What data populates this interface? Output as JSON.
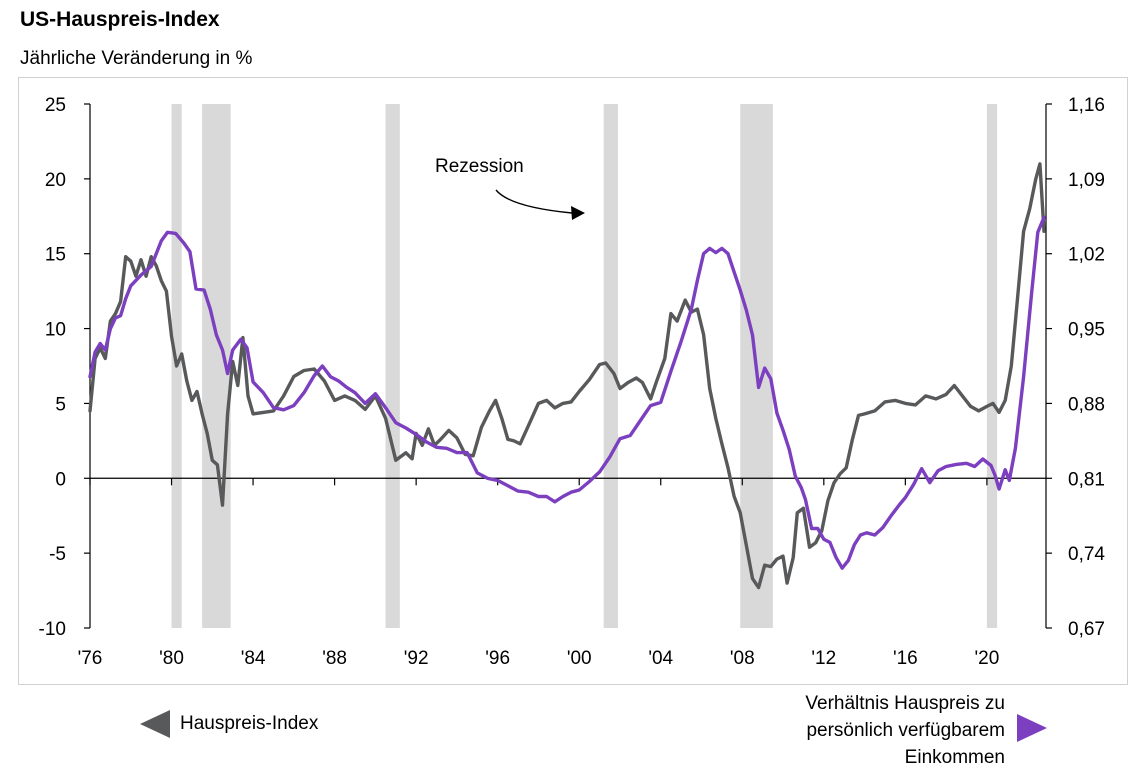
{
  "title": "US-Hauspreis-Index",
  "subtitle": "Jährliche Veränderung in %",
  "legend": {
    "left_label": "Hauspreis-Index",
    "right_line1": "Verhältnis Hauspreis zu",
    "right_line2": "persönlich verfügbarem",
    "right_line3": "Einkommen"
  },
  "colors": {
    "hpi": "#58595b",
    "ratio": "#7b3fbf",
    "recession": "#d9d9d9"
  },
  "chart_data": {
    "type": "line",
    "title": "US-Hauspreis-Index",
    "subtitle": "Jährliche Veränderung in %",
    "annotation": "Rezession",
    "x_range": [
      1976,
      2022.9
    ],
    "x_ticks": [
      1976,
      1980,
      1984,
      1988,
      1992,
      1996,
      2000,
      2004,
      2008,
      2012,
      2016,
      2020
    ],
    "x_tick_labels": [
      "'76",
      "'80",
      "'84",
      "'88",
      "'92",
      "'96",
      "'00",
      "'04",
      "'08",
      "'12",
      "'16",
      "'20"
    ],
    "y_left": {
      "min": -10,
      "max": 25,
      "ticks": [
        -10,
        -5,
        0,
        5,
        10,
        15,
        20,
        25
      ],
      "tick_labels": [
        "-10",
        "-5",
        "0",
        "5",
        "10",
        "15",
        "20",
        "25"
      ]
    },
    "y_right": {
      "min": 0.67,
      "max": 1.16,
      "ticks": [
        0.67,
        0.74,
        0.81,
        0.88,
        0.95,
        1.02,
        1.09,
        1.16
      ],
      "tick_labels": [
        "0,67",
        "0,74",
        "0,81",
        "0,88",
        "0,95",
        "1,02",
        "1,09",
        "1,16"
      ]
    },
    "recessions": [
      [
        1980.0,
        1980.5
      ],
      [
        1981.5,
        1982.9
      ],
      [
        1990.5,
        1991.2
      ],
      [
        2001.2,
        2001.9
      ],
      [
        2007.9,
        2009.5
      ],
      [
        2020.0,
        2020.5
      ]
    ],
    "series": [
      {
        "name": "Hauspreis-Index",
        "axis": "left",
        "points": [
          [
            1976.0,
            4.5
          ],
          [
            1976.25,
            8
          ],
          [
            1976.5,
            8.7
          ],
          [
            1976.75,
            8
          ],
          [
            1977.0,
            10.5
          ],
          [
            1977.25,
            11
          ],
          [
            1977.5,
            11.8
          ],
          [
            1977.75,
            14.8
          ],
          [
            1978.0,
            14.5
          ],
          [
            1978.25,
            13.5
          ],
          [
            1978.5,
            14.6
          ],
          [
            1978.75,
            13.5
          ],
          [
            1979.0,
            14.8
          ],
          [
            1979.25,
            14.2
          ],
          [
            1979.5,
            13.2
          ],
          [
            1979.75,
            12.5
          ],
          [
            1980.0,
            9.5
          ],
          [
            1980.25,
            7.5
          ],
          [
            1980.5,
            8.3
          ],
          [
            1980.75,
            6.5
          ],
          [
            1981.0,
            5.2
          ],
          [
            1981.25,
            5.8
          ],
          [
            1981.5,
            4.3
          ],
          [
            1981.75,
            3
          ],
          [
            1982.0,
            1.2
          ],
          [
            1982.25,
            0.9
          ],
          [
            1982.5,
            -1.8
          ],
          [
            1982.75,
            4.3
          ],
          [
            1983.0,
            7.8
          ],
          [
            1983.25,
            6.2
          ],
          [
            1983.5,
            9.4
          ],
          [
            1983.75,
            5.5
          ],
          [
            1984.0,
            4.3
          ],
          [
            1984.5,
            4.4
          ],
          [
            1985.0,
            4.5
          ],
          [
            1985.5,
            5.5
          ],
          [
            1986.0,
            6.8
          ],
          [
            1986.5,
            7.2
          ],
          [
            1987.0,
            7.3
          ],
          [
            1987.5,
            6.5
          ],
          [
            1988.0,
            5.2
          ],
          [
            1988.5,
            5.5
          ],
          [
            1989.0,
            5.2
          ],
          [
            1989.5,
            4.6
          ],
          [
            1990.0,
            5.5
          ],
          [
            1990.5,
            4
          ],
          [
            1991.0,
            1.2
          ],
          [
            1991.5,
            1.7
          ],
          [
            1991.8,
            1.3
          ],
          [
            1992.0,
            3
          ],
          [
            1992.3,
            2.2
          ],
          [
            1992.6,
            3.3
          ],
          [
            1992.9,
            2.2
          ],
          [
            1993.2,
            2.6
          ],
          [
            1993.6,
            3.2
          ],
          [
            1994.0,
            2.7
          ],
          [
            1994.4,
            1.6
          ],
          [
            1994.8,
            1.5
          ],
          [
            1995.2,
            3.4
          ],
          [
            1995.6,
            4.5
          ],
          [
            1995.9,
            5.2
          ],
          [
            1996.2,
            4
          ],
          [
            1996.5,
            2.6
          ],
          [
            1996.8,
            2.5
          ],
          [
            1997.1,
            2.3
          ],
          [
            1997.5,
            3.5
          ],
          [
            1998.0,
            5
          ],
          [
            1998.4,
            5.2
          ],
          [
            1998.8,
            4.7
          ],
          [
            1999.2,
            5
          ],
          [
            1999.6,
            5.1
          ],
          [
            2000.0,
            5.8
          ],
          [
            2000.5,
            6.6
          ],
          [
            2001.0,
            7.6
          ],
          [
            2001.3,
            7.7
          ],
          [
            2001.7,
            7
          ],
          [
            2002.0,
            6
          ],
          [
            2002.4,
            6.4
          ],
          [
            2002.8,
            6.7
          ],
          [
            2003.1,
            6.4
          ],
          [
            2003.5,
            5.3
          ],
          [
            2003.8,
            6.5
          ],
          [
            2004.2,
            8
          ],
          [
            2004.5,
            11
          ],
          [
            2004.8,
            10.5
          ],
          [
            2005.2,
            11.9
          ],
          [
            2005.5,
            11.1
          ],
          [
            2005.8,
            11.3
          ],
          [
            2006.1,
            9.6
          ],
          [
            2006.4,
            6
          ],
          [
            2006.7,
            4
          ],
          [
            2007.0,
            2.3
          ],
          [
            2007.3,
            0.7
          ],
          [
            2007.6,
            -1.2
          ],
          [
            2007.9,
            -2.3
          ],
          [
            2008.2,
            -4.5
          ],
          [
            2008.5,
            -6.7
          ],
          [
            2008.8,
            -7.3
          ],
          [
            2009.1,
            -5.8
          ],
          [
            2009.4,
            -5.9
          ],
          [
            2009.7,
            -5.4
          ],
          [
            2010.0,
            -5.2
          ],
          [
            2010.2,
            -7
          ],
          [
            2010.5,
            -5.3
          ],
          [
            2010.7,
            -2.3
          ],
          [
            2011.0,
            -2
          ],
          [
            2011.3,
            -4.6
          ],
          [
            2011.6,
            -4.3
          ],
          [
            2011.9,
            -3.5
          ],
          [
            2012.2,
            -1.5
          ],
          [
            2012.5,
            -0.3
          ],
          [
            2012.8,
            0.3
          ],
          [
            2013.1,
            0.7
          ],
          [
            2013.4,
            2.6
          ],
          [
            2013.7,
            4.2
          ],
          [
            2014.0,
            4.3
          ],
          [
            2014.5,
            4.5
          ],
          [
            2015.0,
            5.1
          ],
          [
            2015.5,
            5.2
          ],
          [
            2016.0,
            5
          ],
          [
            2016.5,
            4.9
          ],
          [
            2017.0,
            5.5
          ],
          [
            2017.5,
            5.3
          ],
          [
            2018.0,
            5.6
          ],
          [
            2018.4,
            6.2
          ],
          [
            2018.8,
            5.5
          ],
          [
            2019.2,
            4.8
          ],
          [
            2019.6,
            4.5
          ],
          [
            2020.0,
            4.8
          ],
          [
            2020.3,
            5
          ],
          [
            2020.6,
            4.4
          ],
          [
            2020.9,
            5.2
          ],
          [
            2021.2,
            7.5
          ],
          [
            2021.5,
            12
          ],
          [
            2021.8,
            16.5
          ],
          [
            2022.1,
            18
          ],
          [
            2022.4,
            20
          ],
          [
            2022.6,
            21
          ],
          [
            2022.8,
            16.5
          ]
        ]
      },
      {
        "name": "Verhältnis Hauspreis zu persönlich verfügbarem Einkommen",
        "axis": "right",
        "points": [
          [
            1976.0,
            0.905
          ],
          [
            1976.25,
            0.928
          ],
          [
            1976.5,
            0.936
          ],
          [
            1976.75,
            0.93
          ],
          [
            1977.0,
            0.95
          ],
          [
            1977.25,
            0.96
          ],
          [
            1977.5,
            0.962
          ],
          [
            1977.75,
            0.978
          ],
          [
            1978.0,
            0.99
          ],
          [
            1978.5,
            1.0
          ],
          [
            1979.0,
            1.008
          ],
          [
            1979.5,
            1.032
          ],
          [
            1979.8,
            1.04
          ],
          [
            1980.2,
            1.039
          ],
          [
            1980.6,
            1.03
          ],
          [
            1980.9,
            1.022
          ],
          [
            1981.2,
            0.987
          ],
          [
            1981.6,
            0.986
          ],
          [
            1981.9,
            0.968
          ],
          [
            1982.2,
            0.944
          ],
          [
            1982.5,
            0.93
          ],
          [
            1982.75,
            0.908
          ],
          [
            1983.0,
            0.93
          ],
          [
            1983.4,
            0.94
          ],
          [
            1983.7,
            0.932
          ],
          [
            1984.0,
            0.9
          ],
          [
            1984.5,
            0.89
          ],
          [
            1985.0,
            0.876
          ],
          [
            1985.5,
            0.874
          ],
          [
            1986.0,
            0.878
          ],
          [
            1986.5,
            0.89
          ],
          [
            1987.0,
            0.906
          ],
          [
            1987.4,
            0.915
          ],
          [
            1987.8,
            0.905
          ],
          [
            1988.2,
            0.901
          ],
          [
            1988.6,
            0.895
          ],
          [
            1989.0,
            0.89
          ],
          [
            1989.5,
            0.88
          ],
          [
            1990.0,
            0.889
          ],
          [
            1990.5,
            0.876
          ],
          [
            1991.0,
            0.862
          ],
          [
            1991.5,
            0.857
          ],
          [
            1992.0,
            0.851
          ],
          [
            1992.5,
            0.844
          ],
          [
            1993.0,
            0.839
          ],
          [
            1993.5,
            0.838
          ],
          [
            1994.0,
            0.834
          ],
          [
            1994.5,
            0.834
          ],
          [
            1995.0,
            0.815
          ],
          [
            1995.5,
            0.81
          ],
          [
            1996.0,
            0.808
          ],
          [
            1996.5,
            0.803
          ],
          [
            1997.0,
            0.798
          ],
          [
            1997.5,
            0.797
          ],
          [
            1998.0,
            0.793
          ],
          [
            1998.4,
            0.793
          ],
          [
            1998.8,
            0.788
          ],
          [
            1999.2,
            0.793
          ],
          [
            1999.6,
            0.797
          ],
          [
            2000.0,
            0.799
          ],
          [
            2000.5,
            0.807
          ],
          [
            2001.0,
            0.816
          ],
          [
            2001.5,
            0.83
          ],
          [
            2002.0,
            0.847
          ],
          [
            2002.5,
            0.85
          ],
          [
            2003.0,
            0.864
          ],
          [
            2003.5,
            0.878
          ],
          [
            2004.0,
            0.881
          ],
          [
            2004.5,
            0.91
          ],
          [
            2005.0,
            0.938
          ],
          [
            2005.5,
            0.968
          ],
          [
            2005.8,
            0.995
          ],
          [
            2006.1,
            1.02
          ],
          [
            2006.4,
            1.025
          ],
          [
            2006.7,
            1.021
          ],
          [
            2007.0,
            1.025
          ],
          [
            2007.3,
            1.02
          ],
          [
            2007.6,
            1.003
          ],
          [
            2007.9,
            0.986
          ],
          [
            2008.2,
            0.967
          ],
          [
            2008.5,
            0.944
          ],
          [
            2008.8,
            0.895
          ],
          [
            2009.1,
            0.913
          ],
          [
            2009.4,
            0.903
          ],
          [
            2009.7,
            0.871
          ],
          [
            2010.0,
            0.855
          ],
          [
            2010.3,
            0.837
          ],
          [
            2010.6,
            0.812
          ],
          [
            2010.9,
            0.801
          ],
          [
            2011.1,
            0.79
          ],
          [
            2011.4,
            0.763
          ],
          [
            2011.7,
            0.763
          ],
          [
            2012.0,
            0.753
          ],
          [
            2012.3,
            0.75
          ],
          [
            2012.6,
            0.736
          ],
          [
            2012.9,
            0.726
          ],
          [
            2013.2,
            0.733
          ],
          [
            2013.5,
            0.748
          ],
          [
            2013.8,
            0.757
          ],
          [
            2014.1,
            0.759
          ],
          [
            2014.5,
            0.757
          ],
          [
            2014.9,
            0.764
          ],
          [
            2015.3,
            0.775
          ],
          [
            2015.7,
            0.785
          ],
          [
            2016.0,
            0.792
          ],
          [
            2016.4,
            0.804
          ],
          [
            2016.8,
            0.819
          ],
          [
            2017.2,
            0.806
          ],
          [
            2017.6,
            0.817
          ],
          [
            2018.0,
            0.821
          ],
          [
            2018.5,
            0.823
          ],
          [
            2019.0,
            0.824
          ],
          [
            2019.4,
            0.821
          ],
          [
            2019.8,
            0.828
          ],
          [
            2020.2,
            0.822
          ],
          [
            2020.4,
            0.813
          ],
          [
            2020.6,
            0.8
          ],
          [
            2020.9,
            0.818
          ],
          [
            2021.1,
            0.808
          ],
          [
            2021.4,
            0.838
          ],
          [
            2021.8,
            0.905
          ],
          [
            2022.2,
            0.984
          ],
          [
            2022.5,
            1.04
          ],
          [
            2022.8,
            1.054
          ]
        ]
      }
    ]
  }
}
